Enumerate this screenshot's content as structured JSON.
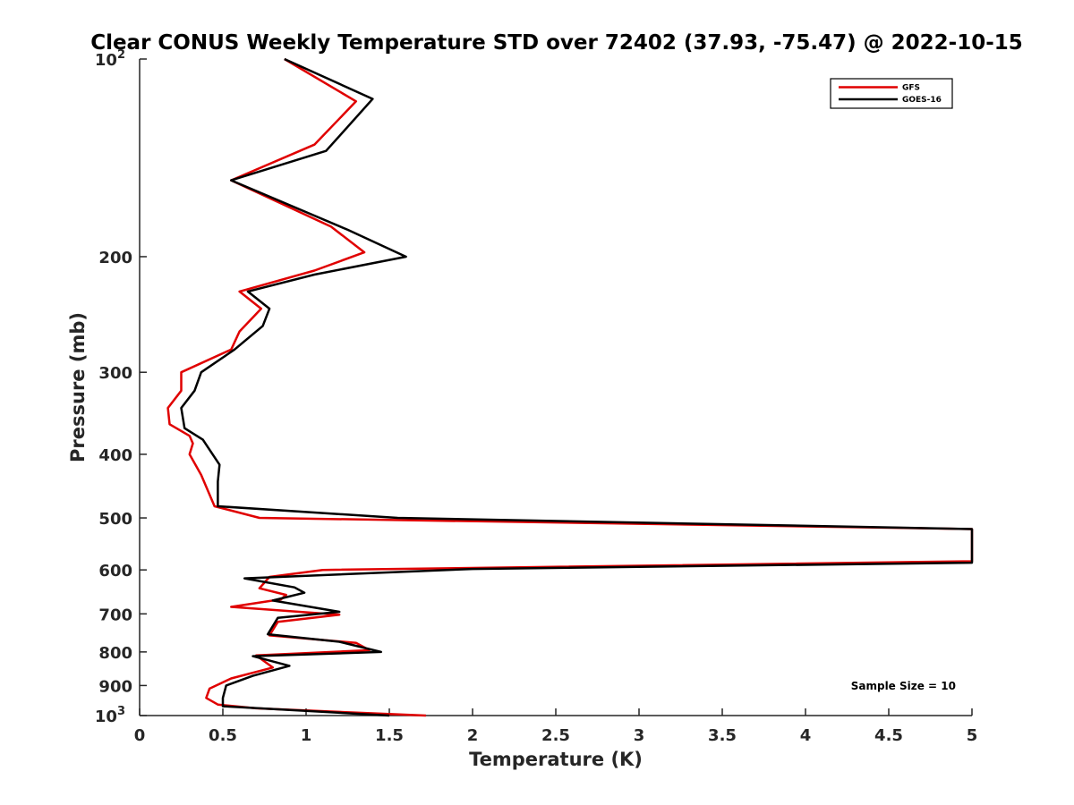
{
  "chart_data": {
    "type": "line",
    "title": "Clear CONUS Weekly Temperature STD over 72402 (37.93, -75.47) @ 2022-10-15",
    "xlabel": "Temperature (K)",
    "ylabel": "Pressure (mb)",
    "xlim": [
      0,
      5
    ],
    "ylim": [
      100,
      1000
    ],
    "yscale": "log",
    "y_reversed": true,
    "xticks": [
      0,
      0.5,
      1,
      1.5,
      2,
      2.5,
      3,
      3.5,
      4,
      4.5,
      5
    ],
    "xtick_labels": [
      "0",
      "0.5",
      "1",
      "1.5",
      "2",
      "2.5",
      "3",
      "3.5",
      "4",
      "4.5",
      "5"
    ],
    "yticks": [
      100,
      200,
      300,
      400,
      500,
      600,
      700,
      800,
      900,
      1000
    ],
    "ytick_labels": [
      {
        "base": "10",
        "exp": "2"
      },
      {
        "base": "200",
        "exp": ""
      },
      {
        "base": "300",
        "exp": ""
      },
      {
        "base": "400",
        "exp": ""
      },
      {
        "base": "500",
        "exp": ""
      },
      {
        "base": "600",
        "exp": ""
      },
      {
        "base": "700",
        "exp": ""
      },
      {
        "base": "800",
        "exp": ""
      },
      {
        "base": "900",
        "exp": ""
      },
      {
        "base": "10",
        "exp": "3"
      }
    ],
    "legend_position": "top-right",
    "annotation": "Sample Size = 10",
    "series": [
      {
        "name": "GFS",
        "color": "#e00000",
        "points": [
          [
            0.87,
            100
          ],
          [
            1.3,
            116
          ],
          [
            1.05,
            135
          ],
          [
            0.55,
            153
          ],
          [
            1.15,
            180
          ],
          [
            1.35,
            197
          ],
          [
            1.05,
            210
          ],
          [
            0.6,
            226
          ],
          [
            0.73,
            240
          ],
          [
            0.6,
            260
          ],
          [
            0.55,
            277
          ],
          [
            0.25,
            300
          ],
          [
            0.25,
            320
          ],
          [
            0.17,
            340
          ],
          [
            0.18,
            360
          ],
          [
            0.3,
            375
          ],
          [
            0.32,
            385
          ],
          [
            0.3,
            400
          ],
          [
            0.37,
            430
          ],
          [
            0.45,
            480
          ],
          [
            0.72,
            500
          ],
          [
            5,
            520
          ],
          [
            5,
            582
          ],
          [
            1.1,
            600
          ],
          [
            0.78,
            615
          ],
          [
            0.72,
            640
          ],
          [
            0.88,
            655
          ],
          [
            0.85,
            665
          ],
          [
            0.55,
            683
          ],
          [
            1.2,
            702
          ],
          [
            0.83,
            720
          ],
          [
            0.78,
            755
          ],
          [
            1.3,
            775
          ],
          [
            1.38,
            795
          ],
          [
            0.7,
            810
          ],
          [
            0.8,
            845
          ],
          [
            0.55,
            878
          ],
          [
            0.42,
            910
          ],
          [
            0.4,
            940
          ],
          [
            0.47,
            962
          ],
          [
            0.7,
            975
          ],
          [
            1.72,
            1000
          ]
        ]
      },
      {
        "name": "GOES-16",
        "color": "#000000",
        "points": [
          [
            0.87,
            100
          ],
          [
            1.4,
            115
          ],
          [
            1.12,
            138
          ],
          [
            0.55,
            153
          ],
          [
            1.25,
            182
          ],
          [
            1.6,
            200
          ],
          [
            1.05,
            213
          ],
          [
            0.65,
            226
          ],
          [
            0.78,
            240
          ],
          [
            0.74,
            255
          ],
          [
            0.57,
            277
          ],
          [
            0.37,
            300
          ],
          [
            0.33,
            320
          ],
          [
            0.25,
            340
          ],
          [
            0.27,
            365
          ],
          [
            0.38,
            380
          ],
          [
            0.48,
            415
          ],
          [
            0.47,
            440
          ],
          [
            0.47,
            480
          ],
          [
            1.55,
            500
          ],
          [
            5,
            520
          ],
          [
            5,
            585
          ],
          [
            2.0,
            598
          ],
          [
            0.63,
            618
          ],
          [
            0.93,
            638
          ],
          [
            0.99,
            650
          ],
          [
            0.8,
            668
          ],
          [
            1.2,
            695
          ],
          [
            0.83,
            710
          ],
          [
            0.77,
            752
          ],
          [
            1.2,
            772
          ],
          [
            1.45,
            800
          ],
          [
            0.68,
            812
          ],
          [
            0.9,
            840
          ],
          [
            0.68,
            870
          ],
          [
            0.52,
            900
          ],
          [
            0.5,
            940
          ],
          [
            0.5,
            968
          ],
          [
            1.5,
            1000
          ]
        ]
      }
    ]
  },
  "legend": [
    {
      "label": "GFS",
      "color": "#e00000"
    },
    {
      "label": "GOES-16",
      "color": "#000000"
    }
  ]
}
